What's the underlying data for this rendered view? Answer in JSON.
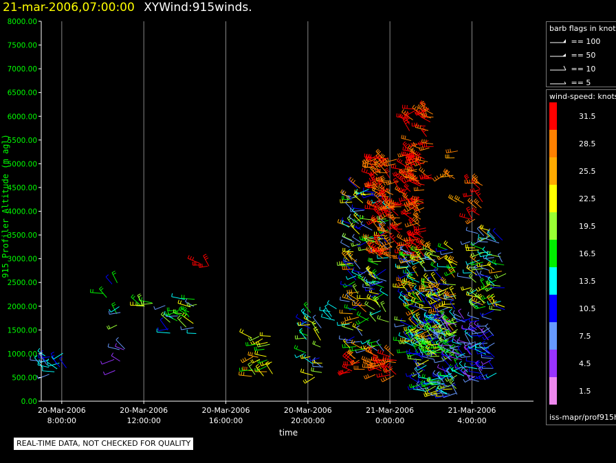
{
  "title": {
    "date": "21-mar-2006,07:00:00",
    "name": "XYWind:915winds."
  },
  "qc_note": "REAL-TIME DATA, NOT CHECKED FOR QUALITY",
  "legend": {
    "barb_title": "barb flags in knots",
    "barbs": [
      {
        "label": "== 100"
      },
      {
        "label": "== 50"
      },
      {
        "label": "== 10"
      },
      {
        "label": "== 5"
      }
    ],
    "speed_title": "wind-speed: knots",
    "speed_scale": [
      {
        "label": "31.5",
        "color": "#ff0000"
      },
      {
        "label": "28.5",
        "color": "#ff8000"
      },
      {
        "label": "25.5",
        "color": "#ffaa00"
      },
      {
        "label": "22.5",
        "color": "#ffff00"
      },
      {
        "label": "19.5",
        "color": "#99ff33"
      },
      {
        "label": "16.5",
        "color": "#00ee00"
      },
      {
        "label": "13.5",
        "color": "#00ffff"
      },
      {
        "label": "10.5",
        "color": "#0000ff"
      },
      {
        "label": "7.5",
        "color": "#6699ff"
      },
      {
        "label": "4.5",
        "color": "#9933ff"
      },
      {
        "label": "1.5",
        "color": "#ee88ee"
      }
    ],
    "footer": "iss-mapr/prof915h"
  },
  "chart_data": {
    "type": "scatter",
    "ylabel": "915 Profiler Altitude (m agl)",
    "xlabel": "time",
    "ylim": [
      0,
      8000
    ],
    "y_ticks": [
      "0.00",
      "500.00",
      "1000.00",
      "1500.00",
      "2000.00",
      "2500.00",
      "3000.00",
      "3500.00",
      "4000.00",
      "4500.00",
      "5000.00",
      "5500.00",
      "6000.00",
      "6500.00",
      "7000.00",
      "7500.00",
      "8000.00"
    ],
    "x_range": [
      "2006-03-20 07:00",
      "2006-03-21 07:00"
    ],
    "x_ticks": [
      {
        "t": "2006-03-20 08:00",
        "date": "20-Mar-2006",
        "time": "8:00:00"
      },
      {
        "t": "2006-03-20 12:00",
        "date": "20-Mar-2006",
        "time": "12:00:00"
      },
      {
        "t": "2006-03-20 16:00",
        "date": "20-Mar-2006",
        "time": "16:00:00"
      },
      {
        "t": "2006-03-20 20:00",
        "date": "20-Mar-2006",
        "time": "20:00:00"
      },
      {
        "t": "2006-03-21 00:00",
        "date": "21-Mar-2006",
        "time": "0:00:00"
      },
      {
        "t": "2006-03-21 04:00",
        "date": "21-Mar-2006",
        "time": "4:00:00"
      }
    ],
    "grid": "vertical at x ticks",
    "clusters": [
      {
        "t_hours": 0.5,
        "t_span": 1.6,
        "alt_min": 550,
        "alt_max": 1300,
        "speed": [
          4,
          16
        ],
        "n": 18
      },
      {
        "t_hours": 3.5,
        "t_span": 1.0,
        "alt_min": 1500,
        "alt_max": 2700,
        "speed": [
          8,
          20
        ],
        "n": 8
      },
      {
        "t_hours": 3.7,
        "t_span": 0.8,
        "alt_min": 400,
        "alt_max": 1400,
        "speed": [
          2,
          10
        ],
        "n": 6
      },
      {
        "t_hours": 5.2,
        "t_span": 1.0,
        "alt_min": 2000,
        "alt_max": 2200,
        "speed": [
          15,
          22
        ],
        "n": 6
      },
      {
        "t_hours": 6.7,
        "t_span": 1.8,
        "alt_min": 1400,
        "alt_max": 2200,
        "speed": [
          8,
          22
        ],
        "n": 24
      },
      {
        "t_hours": 8.0,
        "t_span": 0.6,
        "alt_min": 2700,
        "alt_max": 2900,
        "speed": [
          29,
          33
        ],
        "n": 4
      },
      {
        "t_hours": 10.8,
        "t_span": 1.2,
        "alt_min": 500,
        "alt_max": 1400,
        "speed": [
          16,
          28
        ],
        "n": 22
      },
      {
        "t_hours": 13.3,
        "t_span": 1.0,
        "alt_min": 500,
        "alt_max": 1900,
        "speed": [
          8,
          24
        ],
        "n": 26
      },
      {
        "t_hours": 14.2,
        "t_span": 0.5,
        "alt_min": 1700,
        "alt_max": 2000,
        "speed": [
          12,
          16
        ],
        "n": 5
      },
      {
        "t_hours": 16.2,
        "t_span": 2.4,
        "alt_min": 500,
        "alt_max": 1000,
        "speed": [
          28,
          33
        ],
        "n": 40
      },
      {
        "t_hours": 16.0,
        "t_span": 2.0,
        "alt_min": 1000,
        "alt_max": 4500,
        "speed": [
          6,
          28
        ],
        "n": 150
      },
      {
        "t_hours": 17.5,
        "t_span": 2.6,
        "alt_min": 3000,
        "alt_max": 5200,
        "speed": [
          27,
          33
        ],
        "n": 180
      },
      {
        "t_hours": 18.5,
        "t_span": 1.3,
        "alt_min": 4500,
        "alt_max": 6200,
        "speed": [
          28,
          33
        ],
        "n": 50
      },
      {
        "t_hours": 19.0,
        "t_span": 2.6,
        "alt_min": 1000,
        "alt_max": 3200,
        "speed": [
          6,
          28
        ],
        "n": 200
      },
      {
        "t_hours": 19.4,
        "t_span": 2.0,
        "alt_min": 100,
        "alt_max": 1800,
        "speed": [
          6,
          22
        ],
        "n": 120
      },
      {
        "t_hours": 21.0,
        "t_span": 2.4,
        "alt_min": 400,
        "alt_max": 1800,
        "speed": [
          4,
          14
        ],
        "n": 90
      },
      {
        "t_hours": 21.8,
        "t_span": 1.8,
        "alt_min": 1900,
        "alt_max": 3600,
        "speed": [
          6,
          26
        ],
        "n": 70
      },
      {
        "t_hours": 21.2,
        "t_span": 0.8,
        "alt_min": 3800,
        "alt_max": 4600,
        "speed": [
          28,
          33
        ],
        "n": 14
      },
      {
        "t_hours": 20.2,
        "t_span": 1.0,
        "alt_min": 4100,
        "alt_max": 5400,
        "speed": [
          26,
          30
        ],
        "n": 8
      }
    ]
  }
}
